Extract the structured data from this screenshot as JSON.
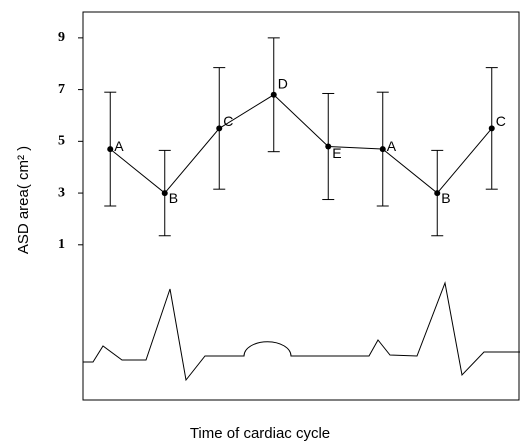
{
  "chart_data": {
    "type": "line",
    "x_label": "Time of cardiac cycle",
    "y_label": "ASD area( cm² )",
    "categories": [
      "A",
      "B",
      "C",
      "D",
      "E",
      "A",
      "B",
      "C"
    ],
    "series": [
      {
        "color": "#000000",
        "values": [
          4.7,
          3.0,
          5.5,
          6.8,
          4.8,
          4.7,
          3.0,
          5.5
        ],
        "errors": [
          2.2,
          1.65,
          2.35,
          2.2,
          2.05,
          2.2,
          1.65,
          2.35
        ]
      }
    ],
    "ylim": [
      -5,
      10
    ],
    "yticks": [
      1,
      3,
      5,
      7,
      9
    ]
  }
}
